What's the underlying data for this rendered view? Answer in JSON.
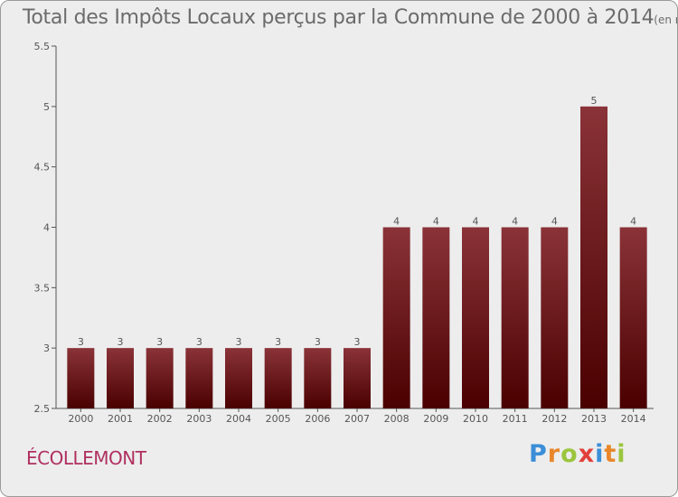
{
  "chart_data": {
    "type": "bar",
    "title": "Total des Impôts Locaux perçus par la Commune de 2000 à 2014",
    "unit_note": "(en milliers d'€)",
    "categories": [
      "2000",
      "2001",
      "2002",
      "2003",
      "2004",
      "2005",
      "2006",
      "2007",
      "2008",
      "2009",
      "2010",
      "2011",
      "2012",
      "2013",
      "2014"
    ],
    "values": [
      3,
      3,
      3,
      3,
      3,
      3,
      3,
      3,
      4,
      4,
      4,
      4,
      4,
      5,
      4
    ],
    "ylim": [
      2.5,
      5.5
    ],
    "yticks": [
      2.5,
      3,
      3.5,
      4,
      4.5,
      5,
      5.5
    ],
    "ytick_labels": [
      "2.5",
      "3",
      "3.5",
      "4",
      "4.5",
      "5",
      "5.5"
    ],
    "xlabel": "",
    "ylabel": "",
    "grid": false,
    "bar_color_top": "#8a3338",
    "bar_color_bottom": "#4a0000"
  },
  "commune": "ÉCOLLEMONT",
  "logo": {
    "letters": [
      "P",
      "r",
      "o",
      "x",
      "i",
      "t",
      "i"
    ],
    "colors": [
      "#3b8ed8",
      "#e8872a",
      "#9bc53d",
      "#e0413a",
      "#3b8ed8",
      "#e8872a",
      "#9bc53d"
    ]
  }
}
